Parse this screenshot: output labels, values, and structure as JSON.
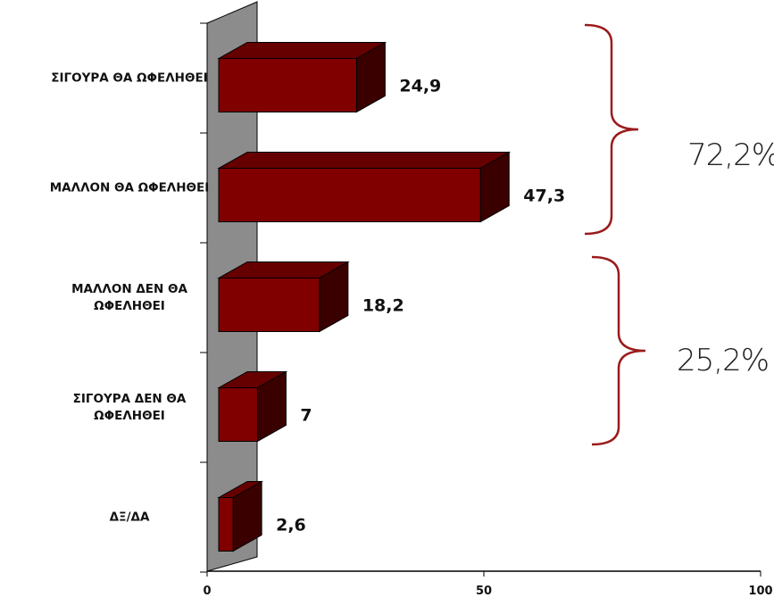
{
  "chart_data": {
    "type": "bar",
    "orientation": "horizontal",
    "style": "3d",
    "categories": [
      [
        "ΣΙΓΟΥΡΑ ΘΑ ΩΦΕΛΗΘΕΙ"
      ],
      [
        "ΜΑΛΛΟΝ ΘΑ ΩΦΕΛΗΘΕΙ"
      ],
      [
        "ΜΑΛΛΟΝ ΔΕΝ ΘΑ",
        "ΩΦΕΛΗΘΕΙ"
      ],
      [
        "ΣΙΓΟΥΡΑ ΔΕΝ ΘΑ",
        "ΩΦΕΛΗΘΕΙ"
      ],
      [
        "ΔΞ/ΔΑ"
      ]
    ],
    "values": [
      24.9,
      47.3,
      18.2,
      7,
      2.6
    ],
    "value_labels": [
      "24,9",
      "47,3",
      "18,2",
      "7",
      "2,6"
    ],
    "xlim": [
      0,
      100
    ],
    "xticks": [
      "0",
      "50",
      "100"
    ],
    "grid": false,
    "colors": {
      "bar_front": "#800000",
      "bar_top": "#660000",
      "bar_side": "#3a0000",
      "wall": "#8c8c8c",
      "brace": "#9b1b1b"
    },
    "annotations": [
      {
        "text": "72,2%",
        "group": [
          0,
          1
        ]
      },
      {
        "text": "25,2%",
        "group": [
          2,
          3
        ]
      }
    ]
  }
}
